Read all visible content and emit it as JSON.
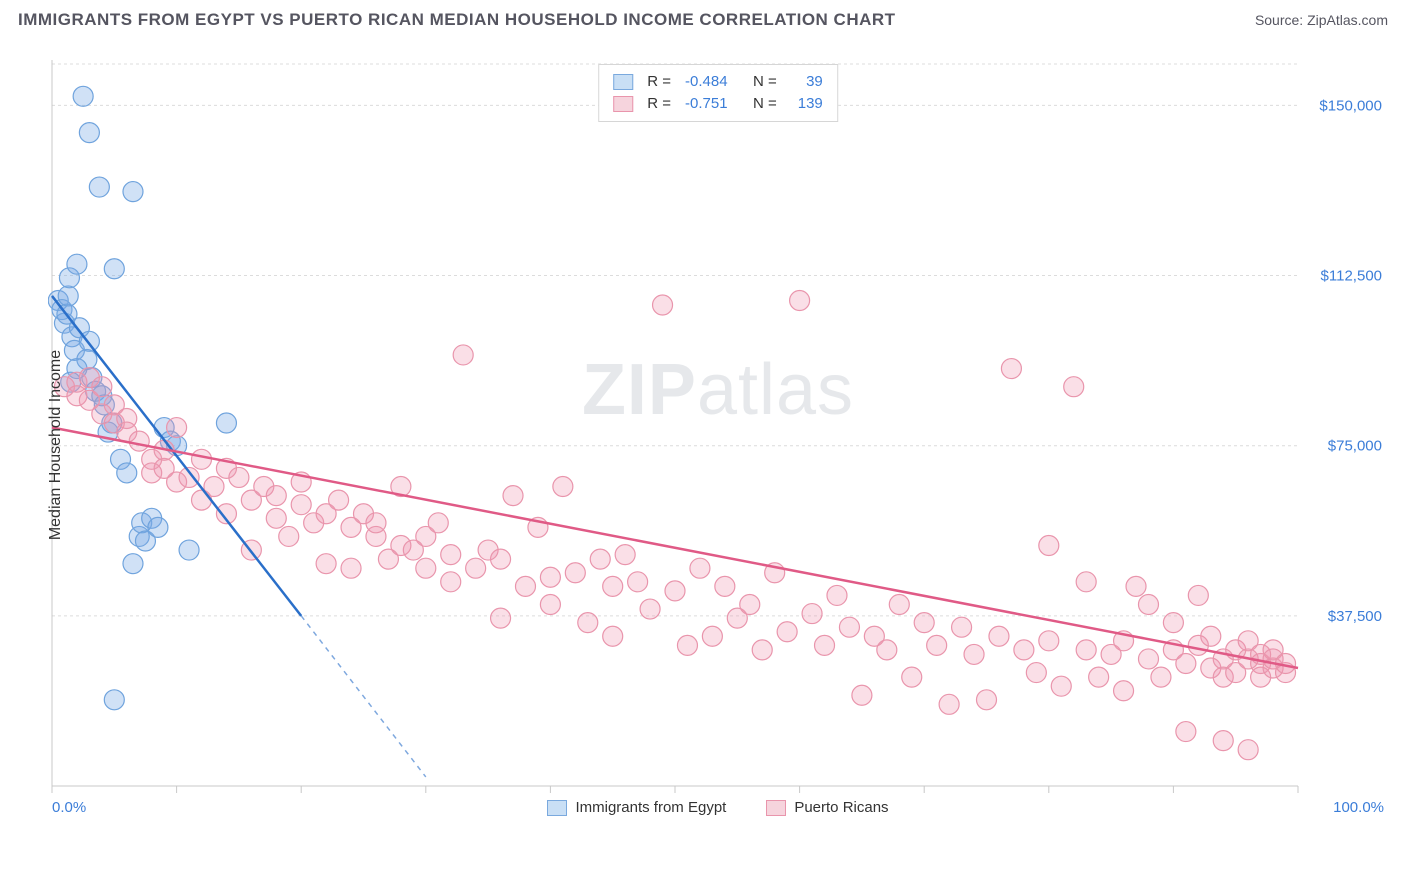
{
  "header": {
    "title": "IMMIGRANTS FROM EGYPT VS PUERTO RICAN MEDIAN HOUSEHOLD INCOME CORRELATION CHART",
    "source": "Source: ZipAtlas.com"
  },
  "watermark": "ZIPatlas",
  "chart": {
    "type": "scatter",
    "ylabel": "Median Household Income",
    "xlim": [
      0,
      100
    ],
    "ylim": [
      0,
      160000
    ],
    "background_color": "#ffffff",
    "grid_color": "#dcdcdc",
    "axis_color": "#c8c8c8",
    "yticks": [
      {
        "value": 37500,
        "label": "$37,500"
      },
      {
        "value": 75000,
        "label": "$75,000"
      },
      {
        "value": 112500,
        "label": "$112,500"
      },
      {
        "value": 150000,
        "label": "$150,000"
      }
    ],
    "xticks": [
      0,
      10,
      20,
      30,
      40,
      50,
      60,
      70,
      80,
      90,
      100
    ],
    "xaxis_labels": {
      "left": "0.0%",
      "right": "100.0%"
    },
    "series": [
      {
        "id": "egypt",
        "label": "Immigrants from Egypt",
        "color_fill": "rgba(120,170,230,0.35)",
        "color_stroke": "#6fa3dd",
        "swatch_fill": "#c9dff5",
        "swatch_stroke": "#7aa9de",
        "marker_radius": 10,
        "R": "-0.484",
        "N": "39",
        "trend": {
          "x1": 0,
          "y1": 108000,
          "x2": 20,
          "y2": 37500,
          "color": "#2a6fc9",
          "extend_x2": 30,
          "extend_y2": 2000
        },
        "points": [
          [
            0.5,
            107000
          ],
          [
            0.8,
            105000
          ],
          [
            1.0,
            102000
          ],
          [
            1.2,
            104000
          ],
          [
            1.3,
            108000
          ],
          [
            1.4,
            112000
          ],
          [
            1.6,
            99000
          ],
          [
            1.8,
            96000
          ],
          [
            2.0,
            115000
          ],
          [
            2.2,
            101000
          ],
          [
            2.5,
            152000
          ],
          [
            2.8,
            94000
          ],
          [
            3.0,
            144000
          ],
          [
            3.2,
            90000
          ],
          [
            3.5,
            87000
          ],
          [
            3.8,
            132000
          ],
          [
            4.0,
            86000
          ],
          [
            4.2,
            84000
          ],
          [
            4.5,
            78000
          ],
          [
            4.8,
            80000
          ],
          [
            5.0,
            114000
          ],
          [
            5.5,
            72000
          ],
          [
            6.0,
            69000
          ],
          [
            6.5,
            131000
          ],
          [
            7.0,
            55000
          ],
          [
            7.2,
            58000
          ],
          [
            7.5,
            54000
          ],
          [
            8.0,
            59000
          ],
          [
            8.5,
            57000
          ],
          [
            9.0,
            79000
          ],
          [
            9.5,
            76000
          ],
          [
            10.0,
            75000
          ],
          [
            11.0,
            52000
          ],
          [
            2.0,
            92000
          ],
          [
            3.0,
            98000
          ],
          [
            1.5,
            89000
          ],
          [
            5.0,
            19000
          ],
          [
            6.5,
            49000
          ],
          [
            14.0,
            80000
          ]
        ]
      },
      {
        "id": "pr",
        "label": "Puerto Ricans",
        "color_fill": "rgba(240,150,175,0.30)",
        "color_stroke": "#e995ac",
        "swatch_fill": "#f6d4dd",
        "swatch_stroke": "#e995ac",
        "marker_radius": 10,
        "R": "-0.751",
        "N": "139",
        "trend": {
          "x1": 0,
          "y1": 79000,
          "x2": 100,
          "y2": 26000,
          "color": "#e05a86"
        },
        "points": [
          [
            1,
            88000
          ],
          [
            2,
            89000
          ],
          [
            2,
            86000
          ],
          [
            3,
            90000
          ],
          [
            3,
            85000
          ],
          [
            4,
            88000
          ],
          [
            4,
            82000
          ],
          [
            5,
            84000
          ],
          [
            5,
            80000
          ],
          [
            6,
            81000
          ],
          [
            6,
            78000
          ],
          [
            7,
            76000
          ],
          [
            8,
            72000
          ],
          [
            8,
            69000
          ],
          [
            9,
            70000
          ],
          [
            9,
            74000
          ],
          [
            10,
            67000
          ],
          [
            10,
            79000
          ],
          [
            11,
            68000
          ],
          [
            12,
            72000
          ],
          [
            12,
            63000
          ],
          [
            13,
            66000
          ],
          [
            14,
            70000
          ],
          [
            14,
            60000
          ],
          [
            15,
            68000
          ],
          [
            16,
            63000
          ],
          [
            16,
            52000
          ],
          [
            17,
            66000
          ],
          [
            18,
            59000
          ],
          [
            18,
            64000
          ],
          [
            19,
            55000
          ],
          [
            20,
            67000
          ],
          [
            20,
            62000
          ],
          [
            21,
            58000
          ],
          [
            22,
            60000
          ],
          [
            22,
            49000
          ],
          [
            23,
            63000
          ],
          [
            24,
            57000
          ],
          [
            24,
            48000
          ],
          [
            25,
            60000
          ],
          [
            26,
            55000
          ],
          [
            26,
            58000
          ],
          [
            27,
            50000
          ],
          [
            28,
            66000
          ],
          [
            28,
            53000
          ],
          [
            29,
            52000
          ],
          [
            30,
            55000
          ],
          [
            30,
            48000
          ],
          [
            31,
            58000
          ],
          [
            32,
            51000
          ],
          [
            32,
            45000
          ],
          [
            33,
            95000
          ],
          [
            34,
            48000
          ],
          [
            35,
            52000
          ],
          [
            36,
            50000
          ],
          [
            36,
            37000
          ],
          [
            37,
            64000
          ],
          [
            38,
            44000
          ],
          [
            39,
            57000
          ],
          [
            40,
            46000
          ],
          [
            40,
            40000
          ],
          [
            41,
            66000
          ],
          [
            42,
            47000
          ],
          [
            43,
            36000
          ],
          [
            44,
            50000
          ],
          [
            45,
            44000
          ],
          [
            45,
            33000
          ],
          [
            46,
            51000
          ],
          [
            47,
            45000
          ],
          [
            48,
            39000
          ],
          [
            49,
            106000
          ],
          [
            50,
            43000
          ],
          [
            51,
            31000
          ],
          [
            52,
            48000
          ],
          [
            53,
            33000
          ],
          [
            54,
            44000
          ],
          [
            55,
            37000
          ],
          [
            56,
            40000
          ],
          [
            57,
            30000
          ],
          [
            58,
            47000
          ],
          [
            59,
            34000
          ],
          [
            60,
            107000
          ],
          [
            61,
            38000
          ],
          [
            62,
            31000
          ],
          [
            63,
            42000
          ],
          [
            64,
            35000
          ],
          [
            65,
            20000
          ],
          [
            66,
            33000
          ],
          [
            67,
            30000
          ],
          [
            68,
            40000
          ],
          [
            69,
            24000
          ],
          [
            70,
            36000
          ],
          [
            71,
            31000
          ],
          [
            72,
            18000
          ],
          [
            73,
            35000
          ],
          [
            74,
            29000
          ],
          [
            75,
            19000
          ],
          [
            76,
            33000
          ],
          [
            77,
            92000
          ],
          [
            78,
            30000
          ],
          [
            79,
            25000
          ],
          [
            80,
            53000
          ],
          [
            80,
            32000
          ],
          [
            81,
            22000
          ],
          [
            82,
            88000
          ],
          [
            83,
            30000
          ],
          [
            83,
            45000
          ],
          [
            84,
            24000
          ],
          [
            85,
            29000
          ],
          [
            86,
            32000
          ],
          [
            86,
            21000
          ],
          [
            87,
            44000
          ],
          [
            88,
            28000
          ],
          [
            88,
            40000
          ],
          [
            89,
            24000
          ],
          [
            90,
            30000
          ],
          [
            90,
            36000
          ],
          [
            91,
            27000
          ],
          [
            91,
            12000
          ],
          [
            92,
            31000
          ],
          [
            92,
            42000
          ],
          [
            93,
            26000
          ],
          [
            93,
            33000
          ],
          [
            94,
            28000
          ],
          [
            94,
            24000
          ],
          [
            95,
            30000
          ],
          [
            95,
            25000
          ],
          [
            96,
            28000
          ],
          [
            96,
            32000
          ],
          [
            96,
            8000
          ],
          [
            97,
            27000
          ],
          [
            97,
            29000
          ],
          [
            97,
            24000
          ],
          [
            98,
            26000
          ],
          [
            98,
            30000
          ],
          [
            98,
            28000
          ],
          [
            99,
            25000
          ],
          [
            99,
            27000
          ],
          [
            94,
            10000
          ]
        ]
      }
    ]
  },
  "legend_bottom": [
    {
      "series": "egypt"
    },
    {
      "series": "pr"
    }
  ]
}
